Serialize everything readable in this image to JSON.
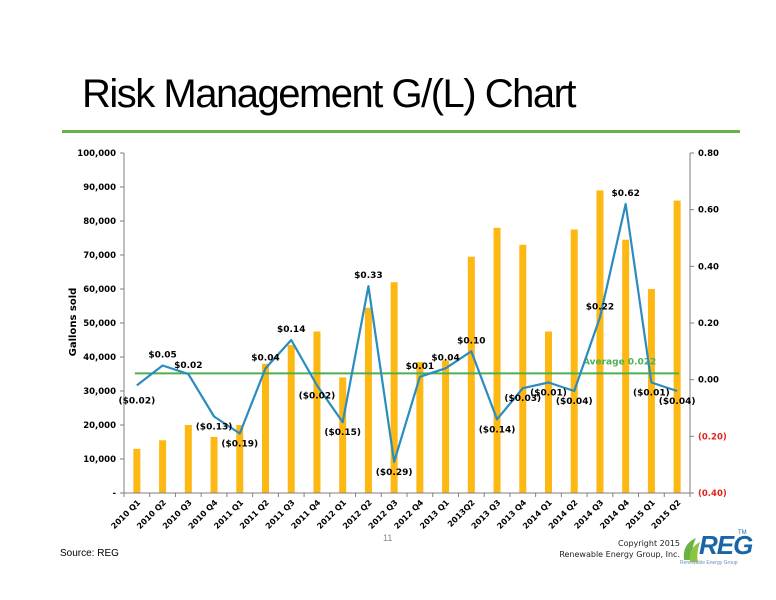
{
  "slide": {
    "title": "Risk Management G/(L) Chart",
    "source": "Source: REG",
    "page_number": "11",
    "copyright_line1": "Copyright 2015",
    "copyright_line2": "Renewable Energy Group, Inc.",
    "logo_text": "REG",
    "logo_tm": "TM",
    "logo_tagline": "Renewable Energy Group",
    "colors": {
      "rule": "#6ab245",
      "bar": "#fdb813",
      "line": "#2a8cbf",
      "average": "#4cb050",
      "negative": "#e0231c",
      "logo": "#1a64a8"
    }
  },
  "chart_data": {
    "type": "bar",
    "categories": [
      "2010 Q1",
      "2010 Q2",
      "2010 Q3",
      "2010 Q4",
      "2011 Q1",
      "2011 Q2",
      "2011 Q3",
      "2011 Q4",
      "2012 Q1",
      "2012 Q2",
      "2012 Q3",
      "2012 Q4",
      "2013 Q1",
      "2013Q2",
      "2013 Q3",
      "2013 Q4",
      "2014 Q1",
      "2014 Q2",
      "2014 Q3",
      "2014 Q4",
      "2015 Q1",
      "2015 Q2"
    ],
    "ylabel": "Gallons sold",
    "ylim": [
      0,
      100000
    ],
    "y_ticks": [
      "-",
      "10,000",
      "20,000",
      "30,000",
      "40,000",
      "50,000",
      "60,000",
      "70,000",
      "80,000",
      "90,000",
      "100,000"
    ],
    "y2lim": [
      -0.4,
      0.8
    ],
    "y2_ticks": [
      "(0.40)",
      "(0.20)",
      "0.00",
      "0.20",
      "0.40",
      "0.60",
      "0.80"
    ],
    "series": [
      {
        "type": "bar",
        "values": [
          13000,
          15500,
          20000,
          16500,
          20000,
          38000,
          43500,
          47500,
          34000,
          54500,
          62000,
          38500,
          39000,
          69500,
          78000,
          73000,
          47500,
          77500,
          89000,
          74500,
          60000,
          86000
        ]
      },
      {
        "type": "line",
        "axis": "secondary",
        "values": [
          -0.02,
          0.05,
          0.02,
          -0.13,
          -0.19,
          0.04,
          0.14,
          -0.02,
          -0.15,
          0.33,
          -0.29,
          0.01,
          0.04,
          0.1,
          -0.14,
          -0.03,
          -0.01,
          -0.04,
          0.22,
          0.62,
          -0.01,
          -0.04
        ],
        "labels": [
          "($0.02)",
          "$0.05",
          "$0.02",
          "($0.13)",
          "($0.19)",
          "$0.04",
          "$0.14",
          "($0.02)",
          "($0.15)",
          "$0.33",
          "($0.29)",
          "$0.01",
          "$0.04",
          "$0.10",
          "($0.14)",
          "($0.03)",
          "($0.01)",
          "($0.04)",
          "$0.22",
          "$0.62",
          "($0.01)",
          "($0.04)"
        ]
      }
    ],
    "average": {
      "value": 0.022,
      "label": "Average 0.022"
    },
    "grid": false,
    "legend": "none"
  }
}
